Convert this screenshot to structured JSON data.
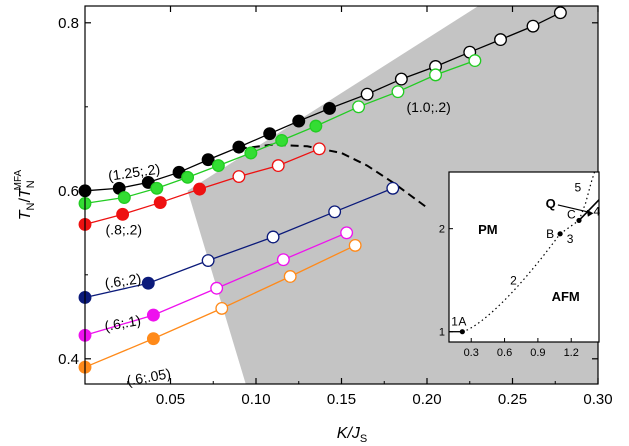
{
  "chart_data": {
    "type": "scatter",
    "xlabel": "K/J",
    "xlabel_sub": "S",
    "ylabel": "T",
    "ylabel_sub": "N",
    "ylabel_den": "T",
    "ylabel_den_sub": "N",
    "ylabel_den_sup": "MFA",
    "xlim": [
      0.0,
      0.3
    ],
    "ylim": [
      0.37,
      0.82
    ],
    "xticks": [
      "0.05",
      "0.10",
      "0.15",
      "0.20",
      "0.25",
      "0.30"
    ],
    "yticks": [
      "0.4",
      "0.6",
      "0.8"
    ],
    "shaded_region": [
      [
        0.094,
        0.37
      ],
      [
        0.06,
        0.6
      ],
      [
        0.23,
        0.82
      ],
      [
        0.3,
        0.82
      ],
      [
        0.3,
        0.37
      ]
    ],
    "boundary_dashed": [
      [
        0.09,
        0.65
      ],
      [
        0.11,
        0.655
      ],
      [
        0.13,
        0.653
      ],
      [
        0.15,
        0.645
      ],
      [
        0.165,
        0.63
      ],
      [
        0.18,
        0.61
      ],
      [
        0.19,
        0.595
      ],
      [
        0.2,
        0.58
      ]
    ],
    "series": [
      {
        "label": "(1.25;.2)",
        "color": "#000000",
        "fill": "#000000",
        "x": [
          0.0,
          0.02,
          0.037,
          0.055,
          0.072,
          0.09,
          0.108,
          0.125,
          0.143,
          0.165,
          0.185,
          0.205,
          0.225,
          0.243,
          0.262,
          0.278
        ],
        "y": [
          0.6,
          0.603,
          0.61,
          0.622,
          0.637,
          0.652,
          0.668,
          0.683,
          0.698,
          0.715,
          0.733,
          0.748,
          0.765,
          0.78,
          0.796,
          0.812
        ],
        "filled": [
          true,
          true,
          true,
          true,
          true,
          true,
          true,
          true,
          true,
          false,
          false,
          false,
          false,
          false,
          false,
          false
        ]
      },
      {
        "label": "(1.0;.2)",
        "color": "#22cc22",
        "fill": "#33dd33",
        "x": [
          0.0,
          0.023,
          0.042,
          0.06,
          0.078,
          0.097,
          0.115,
          0.135,
          0.16,
          0.183,
          0.205,
          0.228
        ],
        "y": [
          0.585,
          0.592,
          0.603,
          0.616,
          0.63,
          0.645,
          0.66,
          0.677,
          0.7,
          0.718,
          0.738,
          0.755
        ],
        "filled": [
          true,
          true,
          true,
          true,
          true,
          true,
          true,
          true,
          false,
          false,
          false,
          false
        ]
      },
      {
        "label": "(.8;.2)",
        "color": "#ee1111",
        "fill": "#ee1111",
        "x": [
          0.0,
          0.022,
          0.044,
          0.067,
          0.09,
          0.113,
          0.137
        ],
        "y": [
          0.56,
          0.572,
          0.586,
          0.602,
          0.617,
          0.63,
          0.65
        ],
        "filled": [
          true,
          true,
          true,
          true,
          false,
          false,
          false
        ]
      },
      {
        "label": "(.6;.2)",
        "color": "#0b1a7a",
        "fill": "#0b1a7a",
        "x": [
          0.0,
          0.037,
          0.072,
          0.11,
          0.146,
          0.18
        ],
        "y": [
          0.473,
          0.49,
          0.517,
          0.545,
          0.575,
          0.603
        ],
        "filled": [
          true,
          true,
          false,
          false,
          false,
          false
        ]
      },
      {
        "label": "(.6;.1)",
        "color": "#ee11ee",
        "fill": "#ee11ee",
        "x": [
          0.0,
          0.04,
          0.077,
          0.116,
          0.153
        ],
        "y": [
          0.428,
          0.452,
          0.484,
          0.518,
          0.55
        ],
        "filled": [
          true,
          true,
          false,
          false,
          false
        ]
      },
      {
        "label": "(.6;.05)",
        "color": "#ff8a1a",
        "fill": "#ff8a1a",
        "x": [
          0.0,
          0.04,
          0.08,
          0.12,
          0.158
        ],
        "y": [
          0.39,
          0.424,
          0.46,
          0.498,
          0.535
        ],
        "filled": [
          true,
          true,
          false,
          false,
          false
        ]
      }
    ],
    "labels": [
      {
        "text": "(1.25;.2)",
        "x": 0.014,
        "y": 0.612,
        "rotate": -8
      },
      {
        "text": "(1.0;.2)",
        "x": 0.188,
        "y": 0.694,
        "rotate": 0
      },
      {
        "text": "(.8;.2)",
        "x": 0.012,
        "y": 0.548,
        "rotate": 0
      },
      {
        "text": "(.6;.2)",
        "x": 0.012,
        "y": 0.484,
        "rotate": -8
      },
      {
        "text": "(.6;.1)",
        "x": 0.012,
        "y": 0.433,
        "rotate": -10
      },
      {
        "text": "(.6;.05)",
        "x": 0.025,
        "y": 0.368,
        "rotate": -10
      }
    ],
    "inset": {
      "xlim": [
        0.1,
        1.45
      ],
      "ylim": [
        0.9,
        2.55
      ],
      "xticks": [
        "0.3",
        "0.6",
        "0.9",
        "1.2"
      ],
      "yticks": [
        "1",
        "2"
      ],
      "phases": [
        {
          "text": "PM",
          "x": 0.45,
          "y": 1.95
        },
        {
          "text": "AFM",
          "x": 1.15,
          "y": 1.3
        }
      ],
      "points": [
        {
          "label": "A",
          "x": 0.22,
          "y": 1.0
        },
        {
          "label": "B",
          "x": 1.1,
          "y": 1.95
        },
        {
          "label": "C",
          "x": 1.27,
          "y": 2.08
        }
      ],
      "curve_labels": [
        {
          "text": "1",
          "x": 0.12,
          "y": 1.06
        },
        {
          "text": "2",
          "x": 0.65,
          "y": 1.46
        },
        {
          "text": "3",
          "x": 1.16,
          "y": 1.86
        },
        {
          "text": "4",
          "x": 1.4,
          "y": 2.13
        },
        {
          "text": "5",
          "x": 1.23,
          "y": 2.36
        }
      ],
      "q_label": "Q"
    }
  }
}
